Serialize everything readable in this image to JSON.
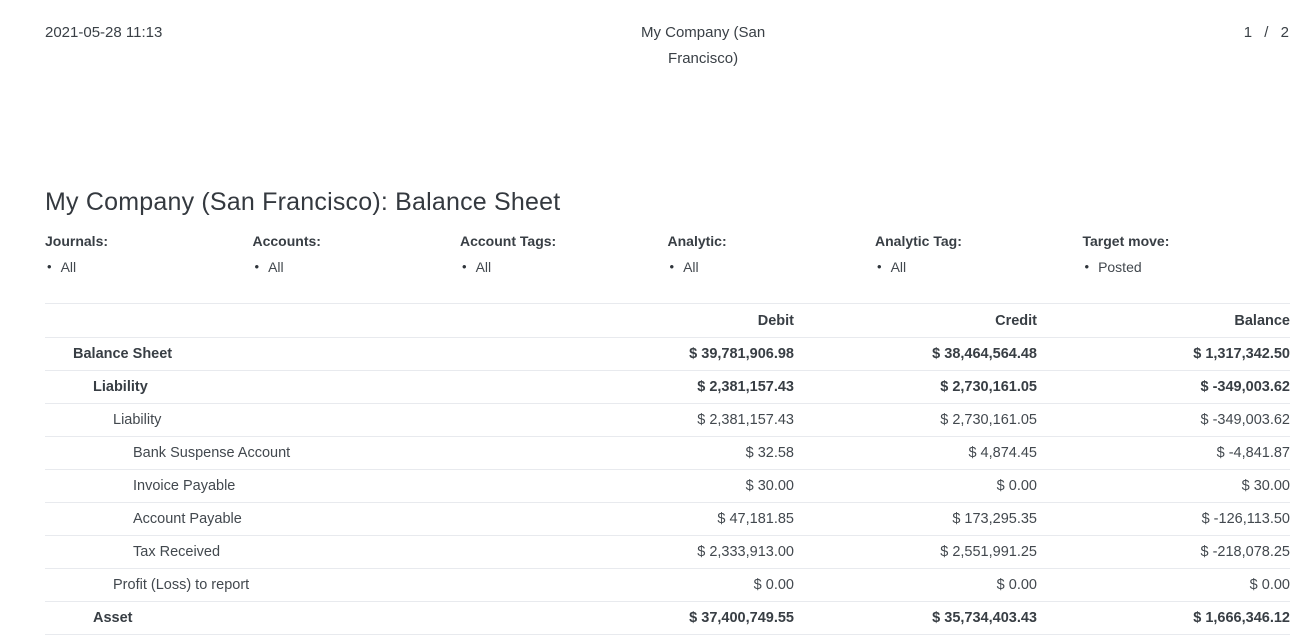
{
  "page_header": {
    "datetime": "2021-05-28 11:13",
    "company": "My Company (San Francisco)",
    "page_indicator": "1 / 2"
  },
  "report": {
    "title": "My Company (San Francisco): Balance Sheet"
  },
  "bullet_glyph": "•",
  "filters": [
    {
      "label": "Journals:",
      "value": "All"
    },
    {
      "label": "Accounts:",
      "value": "All"
    },
    {
      "label": "Account Tags:",
      "value": "All"
    },
    {
      "label": "Analytic:",
      "value": "All"
    },
    {
      "label": "Analytic Tag:",
      "value": "All"
    },
    {
      "label": "Target move:",
      "value": "Posted"
    }
  ],
  "table": {
    "columns": [
      "",
      "Debit",
      "Credit",
      "Balance"
    ],
    "rows": [
      {
        "label": "Balance Sheet",
        "indent": 0,
        "bold": true,
        "debit": "$ 39,781,906.98",
        "credit": "$ 38,464,564.48",
        "balance": "$ 1,317,342.50"
      },
      {
        "label": "Liability",
        "indent": 1,
        "bold": true,
        "debit": "$ 2,381,157.43",
        "credit": "$ 2,730,161.05",
        "balance": "$ -349,003.62"
      },
      {
        "label": "Liability",
        "indent": 2,
        "bold": false,
        "debit": "$ 2,381,157.43",
        "credit": "$ 2,730,161.05",
        "balance": "$ -349,003.62"
      },
      {
        "label": "Bank Suspense Account",
        "indent": 3,
        "bold": false,
        "debit": "$ 32.58",
        "credit": "$ 4,874.45",
        "balance": "$ -4,841.87"
      },
      {
        "label": "Invoice Payable",
        "indent": 3,
        "bold": false,
        "debit": "$ 30.00",
        "credit": "$ 0.00",
        "balance": "$ 30.00"
      },
      {
        "label": "Account Payable",
        "indent": 3,
        "bold": false,
        "debit": "$ 47,181.85",
        "credit": "$ 173,295.35",
        "balance": "$ -126,113.50"
      },
      {
        "label": "Tax Received",
        "indent": 3,
        "bold": false,
        "debit": "$ 2,333,913.00",
        "credit": "$ 2,551,991.25",
        "balance": "$ -218,078.25"
      },
      {
        "label": "Profit (Loss) to report",
        "indent": 2,
        "bold": false,
        "debit": "$ 0.00",
        "credit": "$ 0.00",
        "balance": "$ 0.00"
      },
      {
        "label": "Asset",
        "indent": 1,
        "bold": true,
        "debit": "$ 37,400,749.55",
        "credit": "$ 35,734,403.43",
        "balance": "$ 1,666,346.12"
      }
    ]
  },
  "colors": {
    "divider": "#e8eaee",
    "text": "#42484e"
  }
}
